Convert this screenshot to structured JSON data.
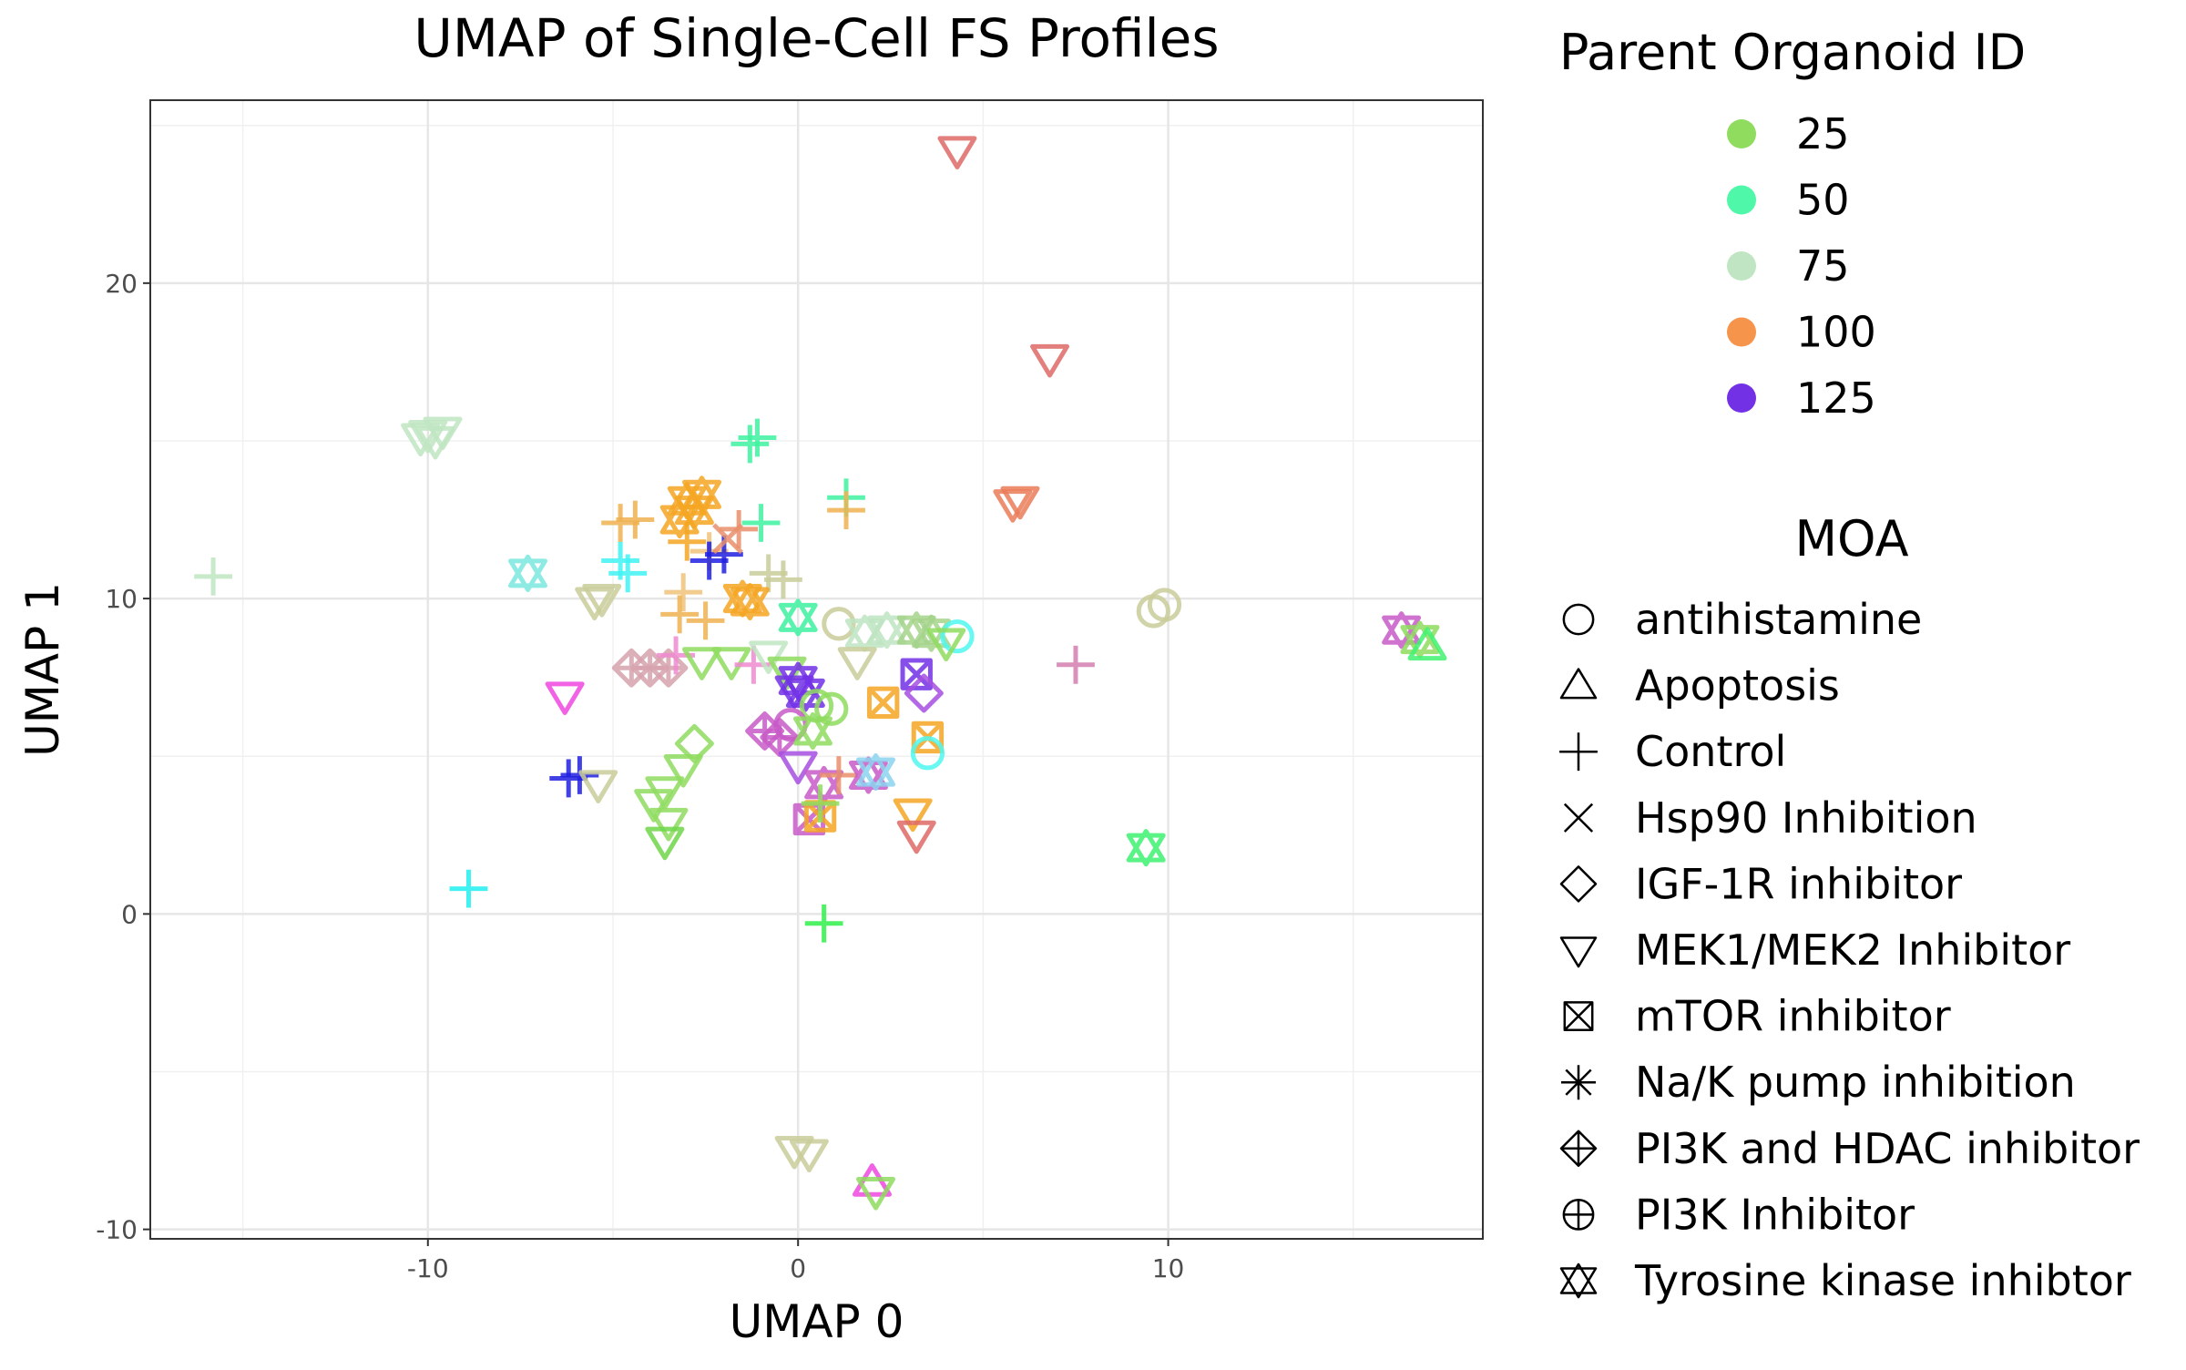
{
  "chart_data": {
    "type": "scatter",
    "title": "UMAP of Single-Cell FS Profiles",
    "xlabel": "UMAP 0",
    "ylabel": "UMAP 1",
    "xlim": [
      -17.5,
      18.5
    ],
    "ylim": [
      -10.3,
      25.8
    ],
    "xticks": [
      -10,
      0,
      10
    ],
    "yticks": [
      -10,
      0,
      10,
      20
    ],
    "grid": true,
    "legend_position": "right",
    "color_legend": {
      "title": "Parent Organoid ID",
      "entries": [
        {
          "label": "25",
          "color": "#8fdc5f"
        },
        {
          "label": "50",
          "color": "#4ff7a9"
        },
        {
          "label": "75",
          "color": "#bfe5c2"
        },
        {
          "label": "100",
          "color": "#f5944a"
        },
        {
          "label": "125",
          "color": "#7331e6"
        }
      ]
    },
    "shape_legend": {
      "title": "MOA",
      "entries": [
        {
          "label": "antihistamine",
          "shape": "circle"
        },
        {
          "label": "Apoptosis",
          "shape": "triangle"
        },
        {
          "label": "Control",
          "shape": "plus"
        },
        {
          "label": "Hsp90 Inhibition",
          "shape": "cross"
        },
        {
          "label": "IGF-1R inhibitor",
          "shape": "diamond"
        },
        {
          "label": "MEK1/MEK2 Inhibitor",
          "shape": "triangle-down"
        },
        {
          "label": "mTOR inhibitor",
          "shape": "square-cross"
        },
        {
          "label": "Na/K pump inhibition",
          "shape": "asterisk"
        },
        {
          "label": "PI3K and HDAC inhibitor",
          "shape": "diamond-plus"
        },
        {
          "label": "PI3K Inhibitor",
          "shape": "circle-plus"
        },
        {
          "label": "Tyrosine kinase inhibtor",
          "shape": "star-of-david"
        }
      ]
    },
    "points": [
      {
        "x": 4.3,
        "y": 24.2,
        "shape": "triangle-down",
        "color": "#de6a66"
      },
      {
        "x": 6.8,
        "y": 17.6,
        "shape": "triangle-down",
        "color": "#de6a66"
      },
      {
        "x": 6.0,
        "y": 13.1,
        "shape": "triangle-down",
        "color": "#ea7d59"
      },
      {
        "x": 5.8,
        "y": 13.0,
        "shape": "triangle-down",
        "color": "#ea7d59"
      },
      {
        "x": -10.0,
        "y": 15.2,
        "shape": "triangle-down",
        "color": "#bfe5c2"
      },
      {
        "x": -9.8,
        "y": 15.0,
        "shape": "triangle-down",
        "color": "#bfe5c2"
      },
      {
        "x": -10.2,
        "y": 15.1,
        "shape": "triangle-down",
        "color": "#bfe5c2"
      },
      {
        "x": -9.6,
        "y": 15.3,
        "shape": "triangle-down",
        "color": "#bfe5c2"
      },
      {
        "x": -15.8,
        "y": 10.7,
        "shape": "plus",
        "color": "#bfe5c2"
      },
      {
        "x": -7.3,
        "y": 10.8,
        "shape": "star-of-david",
        "color": "#7be8e0"
      },
      {
        "x": -5.5,
        "y": 9.9,
        "shape": "triangle-down",
        "color": "#c9cc99"
      },
      {
        "x": -5.3,
        "y": 10.0,
        "shape": "triangle-down",
        "color": "#c9cc99"
      },
      {
        "x": -6.3,
        "y": 6.9,
        "shape": "triangle-down",
        "color": "#ee46e0"
      },
      {
        "x": -6.2,
        "y": 4.3,
        "shape": "plus",
        "color": "#2020e0"
      },
      {
        "x": -5.9,
        "y": 4.4,
        "shape": "plus",
        "color": "#2020e0"
      },
      {
        "x": -5.4,
        "y": 4.1,
        "shape": "triangle-down",
        "color": "#c9cc99"
      },
      {
        "x": -8.9,
        "y": 0.8,
        "shape": "plus",
        "color": "#21f0f0"
      },
      {
        "x": -4.8,
        "y": 11.2,
        "shape": "plus",
        "color": "#3ff2f2"
      },
      {
        "x": -4.6,
        "y": 10.8,
        "shape": "plus",
        "color": "#3ff2f2"
      },
      {
        "x": -4.8,
        "y": 12.4,
        "shape": "plus",
        "color": "#f0b250"
      },
      {
        "x": -4.4,
        "y": 12.5,
        "shape": "plus",
        "color": "#f0b250"
      },
      {
        "x": -3.0,
        "y": 13.1,
        "shape": "star-of-david",
        "color": "#f5a623"
      },
      {
        "x": -2.8,
        "y": 12.8,
        "shape": "star-of-david",
        "color": "#f5a623"
      },
      {
        "x": -3.2,
        "y": 12.5,
        "shape": "star-of-david",
        "color": "#f5a623"
      },
      {
        "x": -2.6,
        "y": 13.3,
        "shape": "star-of-david",
        "color": "#f5a623"
      },
      {
        "x": -3.0,
        "y": 11.8,
        "shape": "plus",
        "color": "#f5a623"
      },
      {
        "x": -2.4,
        "y": 11.5,
        "shape": "plus",
        "color": "#f0c27a"
      },
      {
        "x": -3.1,
        "y": 10.2,
        "shape": "plus",
        "color": "#f0c27a"
      },
      {
        "x": -3.2,
        "y": 9.5,
        "shape": "plus",
        "color": "#f0b250"
      },
      {
        "x": -2.5,
        "y": 9.3,
        "shape": "plus",
        "color": "#f0b250"
      },
      {
        "x": -2.4,
        "y": 11.2,
        "shape": "plus",
        "color": "#2020e0"
      },
      {
        "x": -2.0,
        "y": 11.4,
        "shape": "plus",
        "color": "#2020e0"
      },
      {
        "x": -1.9,
        "y": 11.9,
        "shape": "cross",
        "color": "#e98f6b"
      },
      {
        "x": -1.6,
        "y": 12.2,
        "shape": "plus",
        "color": "#e98f6b"
      },
      {
        "x": -1.3,
        "y": 14.9,
        "shape": "plus",
        "color": "#3ef2a0"
      },
      {
        "x": -1.1,
        "y": 15.1,
        "shape": "plus",
        "color": "#3ef2a0"
      },
      {
        "x": -1.0,
        "y": 12.4,
        "shape": "plus",
        "color": "#3ef2a0"
      },
      {
        "x": -0.8,
        "y": 10.8,
        "shape": "plus",
        "color": "#c9cc99"
      },
      {
        "x": -0.4,
        "y": 10.6,
        "shape": "plus",
        "color": "#c9cc99"
      },
      {
        "x": -1.5,
        "y": 10.0,
        "shape": "star-of-david",
        "color": "#f5a623"
      },
      {
        "x": -1.3,
        "y": 9.9,
        "shape": "star-of-david",
        "color": "#f5a623"
      },
      {
        "x": 0.0,
        "y": 9.4,
        "shape": "star-of-david",
        "color": "#3ef2a0"
      },
      {
        "x": 1.3,
        "y": 13.2,
        "shape": "plus",
        "color": "#3ef2a0"
      },
      {
        "x": 1.3,
        "y": 12.8,
        "shape": "plus",
        "color": "#f0b250"
      },
      {
        "x": -4.5,
        "y": 7.8,
        "shape": "diamond-plus",
        "color": "#d6a2ad"
      },
      {
        "x": -4.0,
        "y": 7.8,
        "shape": "diamond-plus",
        "color": "#d6a2ad"
      },
      {
        "x": -3.5,
        "y": 7.8,
        "shape": "diamond-plus",
        "color": "#d6a2ad"
      },
      {
        "x": -3.3,
        "y": 8.2,
        "shape": "plus",
        "color": "#ee8bd0"
      },
      {
        "x": -2.6,
        "y": 8.0,
        "shape": "triangle-down",
        "color": "#8fdc5f"
      },
      {
        "x": -1.8,
        "y": 8.0,
        "shape": "triangle-down",
        "color": "#8fdc5f"
      },
      {
        "x": -1.2,
        "y": 7.9,
        "shape": "plus",
        "color": "#ee8bd0"
      },
      {
        "x": -0.8,
        "y": 8.2,
        "shape": "triangle-down",
        "color": "#bfe5c2"
      },
      {
        "x": -0.3,
        "y": 7.7,
        "shape": "triangle-down",
        "color": "#8fdc5f"
      },
      {
        "x": 0.0,
        "y": 7.4,
        "shape": "star-of-david",
        "color": "#7331e6"
      },
      {
        "x": 0.2,
        "y": 7.0,
        "shape": "star-of-david",
        "color": "#7331e6"
      },
      {
        "x": -0.1,
        "y": 7.1,
        "shape": "triangle-down",
        "color": "#7331e6"
      },
      {
        "x": 0.5,
        "y": 6.6,
        "shape": "circle",
        "color": "#8fdc5f"
      },
      {
        "x": 0.9,
        "y": 6.5,
        "shape": "circle",
        "color": "#8fdc5f"
      },
      {
        "x": -0.9,
        "y": 5.8,
        "shape": "diamond-plus",
        "color": "#c85bc8"
      },
      {
        "x": -0.5,
        "y": 5.6,
        "shape": "diamond-plus",
        "color": "#c85bc8"
      },
      {
        "x": -0.2,
        "y": 6.0,
        "shape": "circle",
        "color": "#c85bc8"
      },
      {
        "x": 0.4,
        "y": 5.8,
        "shape": "star-of-david",
        "color": "#8fdc5f"
      },
      {
        "x": 0.0,
        "y": 4.7,
        "shape": "triangle-down",
        "color": "#a64fe0"
      },
      {
        "x": 0.7,
        "y": 4.1,
        "shape": "star-of-david",
        "color": "#c85bc8"
      },
      {
        "x": 1.1,
        "y": 4.4,
        "shape": "plus",
        "color": "#e98f6b"
      },
      {
        "x": 1.9,
        "y": 4.4,
        "shape": "star-of-david",
        "color": "#c85bc8"
      },
      {
        "x": 2.1,
        "y": 4.5,
        "shape": "star-of-david",
        "color": "#8bd4f0"
      },
      {
        "x": 0.3,
        "y": 3.0,
        "shape": "square-cross",
        "color": "#c85bc8"
      },
      {
        "x": 0.6,
        "y": 3.1,
        "shape": "square-cross",
        "color": "#f5a623"
      },
      {
        "x": 0.6,
        "y": 3.5,
        "shape": "plus",
        "color": "#8fdc5f"
      },
      {
        "x": 1.1,
        "y": 9.2,
        "shape": "circle",
        "color": "#c9cc99"
      },
      {
        "x": 1.8,
        "y": 8.9,
        "shape": "star-of-david",
        "color": "#bfe5c2"
      },
      {
        "x": 2.4,
        "y": 9.0,
        "shape": "star-of-david",
        "color": "#bfe5c2"
      },
      {
        "x": 3.2,
        "y": 9.0,
        "shape": "star-of-david",
        "color": "#a4d48a"
      },
      {
        "x": 3.6,
        "y": 8.9,
        "shape": "star-of-david",
        "color": "#a4d48a"
      },
      {
        "x": 4.3,
        "y": 8.8,
        "shape": "circle",
        "color": "#4ff7f0"
      },
      {
        "x": 4.0,
        "y": 8.6,
        "shape": "triangle-down",
        "color": "#8fdc5f"
      },
      {
        "x": 1.6,
        "y": 8.0,
        "shape": "triangle-down",
        "color": "#c9cc99"
      },
      {
        "x": 3.2,
        "y": 7.6,
        "shape": "square-cross",
        "color": "#7331e6"
      },
      {
        "x": 3.4,
        "y": 7.0,
        "shape": "diamond",
        "color": "#a64fe0"
      },
      {
        "x": 2.3,
        "y": 6.7,
        "shape": "square-cross",
        "color": "#f5a623"
      },
      {
        "x": 3.5,
        "y": 5.6,
        "shape": "square-cross",
        "color": "#f5a623"
      },
      {
        "x": 3.5,
        "y": 5.1,
        "shape": "circle",
        "color": "#4ff7f0"
      },
      {
        "x": 3.1,
        "y": 3.2,
        "shape": "triangle-down",
        "color": "#f5a623"
      },
      {
        "x": 3.2,
        "y": 2.5,
        "shape": "triangle-down",
        "color": "#de6a66"
      },
      {
        "x": 9.6,
        "y": 9.6,
        "shape": "circle",
        "color": "#c9cc99"
      },
      {
        "x": 9.9,
        "y": 9.8,
        "shape": "circle",
        "color": "#c9cc99"
      },
      {
        "x": 7.5,
        "y": 7.9,
        "shape": "plus",
        "color": "#d47fb0"
      },
      {
        "x": 9.4,
        "y": 2.1,
        "shape": "star-of-david",
        "color": "#3ef270"
      },
      {
        "x": 16.3,
        "y": 9.0,
        "shape": "star-of-david",
        "color": "#c85bc8"
      },
      {
        "x": 16.8,
        "y": 8.7,
        "shape": "star-of-david",
        "color": "#8fdc5f"
      },
      {
        "x": 17.0,
        "y": 8.5,
        "shape": "triangle",
        "color": "#3ef270"
      },
      {
        "x": -2.8,
        "y": 5.4,
        "shape": "diamond",
        "color": "#8fdc5f"
      },
      {
        "x": -3.1,
        "y": 4.6,
        "shape": "triangle-down",
        "color": "#8fdc5f"
      },
      {
        "x": -3.6,
        "y": 3.9,
        "shape": "triangle-down",
        "color": "#8fdc5f"
      },
      {
        "x": -3.9,
        "y": 3.5,
        "shape": "triangle-down",
        "color": "#8fdc5f"
      },
      {
        "x": -3.5,
        "y": 2.9,
        "shape": "triangle-down",
        "color": "#8fdc5f"
      },
      {
        "x": -3.6,
        "y": 2.3,
        "shape": "triangle-down",
        "color": "#6ed64a"
      },
      {
        "x": 0.7,
        "y": -0.3,
        "shape": "plus",
        "color": "#30ee4a"
      },
      {
        "x": -0.1,
        "y": -7.5,
        "shape": "triangle-down",
        "color": "#c9cc99"
      },
      {
        "x": 0.3,
        "y": -7.6,
        "shape": "triangle-down",
        "color": "#c9cc99"
      },
      {
        "x": 2.0,
        "y": -8.5,
        "shape": "triangle",
        "color": "#ee46e0"
      },
      {
        "x": 2.1,
        "y": -8.8,
        "shape": "triangle-down",
        "color": "#8fdc5f"
      }
    ]
  }
}
